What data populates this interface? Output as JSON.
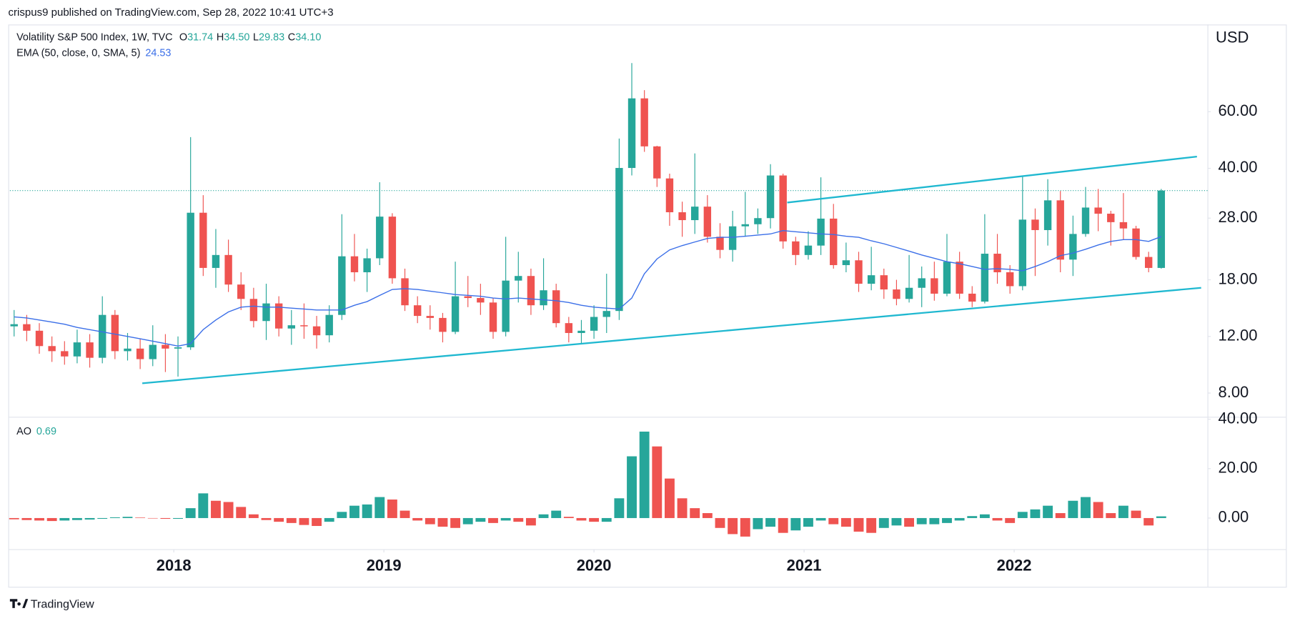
{
  "header": {
    "text": "crispus9 published on TradingView.com, Sep 28, 2022 10:41 UTC+3"
  },
  "footer": {
    "brand": "TradingView"
  },
  "chart_data": {
    "type": "candlestick",
    "title": "Volatility S&P 500 Index, 1W, TVC",
    "ohlc_legend": [
      {
        "key": "O",
        "value": 31.74
      },
      {
        "key": "H",
        "value": 34.5,
        "label": "34.50"
      },
      {
        "key": "L",
        "value": 29.83
      },
      {
        "key": "C",
        "value": 34.1,
        "label": "34.10"
      }
    ],
    "y_axis_label": "USD",
    "log_scale": true,
    "up_color": "#26a69a",
    "down_color": "#ef5350",
    "xlim": [
      2017.22,
      2022.92
    ],
    "xticks": [
      2018,
      2019,
      2020,
      2021,
      2022
    ],
    "ylim": [
      6.75,
      112
    ],
    "yticks": [
      {
        "value": 8,
        "label": "8.00"
      },
      {
        "value": 12,
        "label": "12.00"
      },
      {
        "value": 18,
        "label": "18.00"
      },
      {
        "value": 28,
        "label": "28.00"
      },
      {
        "value": 40,
        "label": "40.00"
      },
      {
        "value": 60,
        "label": "60.00"
      }
    ],
    "x": [
      2017.24,
      2017.3,
      2017.36,
      2017.42,
      2017.48,
      2017.54,
      2017.6,
      2017.66,
      2017.72,
      2017.78,
      2017.84,
      2017.9,
      2017.96,
      2018.02,
      2018.08,
      2018.14,
      2018.2,
      2018.26,
      2018.32,
      2018.38,
      2018.44,
      2018.5,
      2018.56,
      2018.62,
      2018.68,
      2018.74,
      2018.8,
      2018.86,
      2018.92,
      2018.98,
      2019.04,
      2019.1,
      2019.16,
      2019.22,
      2019.28,
      2019.34,
      2019.4,
      2019.46,
      2019.52,
      2019.58,
      2019.64,
      2019.7,
      2019.76,
      2019.82,
      2019.88,
      2019.94,
      2020.0,
      2020.06,
      2020.12,
      2020.18,
      2020.24,
      2020.3,
      2020.36,
      2020.42,
      2020.48,
      2020.54,
      2020.6,
      2020.66,
      2020.72,
      2020.78,
      2020.84,
      2020.9,
      2020.96,
      2021.02,
      2021.08,
      2021.14,
      2021.2,
      2021.26,
      2021.32,
      2021.38,
      2021.44,
      2021.5,
      2021.56,
      2021.62,
      2021.68,
      2021.74,
      2021.8,
      2021.86,
      2021.92,
      2021.98,
      2022.04,
      2022.1,
      2022.16,
      2022.22,
      2022.28,
      2022.34,
      2022.4,
      2022.46,
      2022.52,
      2022.58,
      2022.64,
      2022.7
    ],
    "open": [
      12.9,
      13.1,
      12.5,
      11.2,
      10.8,
      10.4,
      11.5,
      10.3,
      14.0,
      10.8,
      11.0,
      10.2,
      11.3,
      11.0,
      11.1,
      29.1,
      19.6,
      21.5,
      17.4,
      15.7,
      13.4,
      15.2,
      12.7,
      13.0,
      12.9,
      12.1,
      14.0,
      21.3,
      19.0,
      21.0,
      28.3,
      18.2,
      15.0,
      13.9,
      13.7,
      12.4,
      16.0,
      15.8,
      15.3,
      12.4,
      17.9,
      18.5,
      15.0,
      16.7,
      13.2,
      12.3,
      12.5,
      13.8,
      14.4,
      40.1,
      66.0,
      46.8,
      37.2,
      29.2,
      27.6,
      30.4,
      24.5,
      22.3,
      26.4,
      26.8,
      28.0,
      38.0,
      23.7,
      21.5,
      23.0,
      27.9,
      20.0,
      20.7,
      17.5,
      18.6,
      16.8,
      15.7,
      17.0,
      18.2,
      16.3,
      20.5,
      16.3,
      15.4,
      21.7,
      19.0,
      17.2,
      27.7,
      25.7,
      31.8,
      20.8,
      25.0,
      30.2,
      28.9,
      27.2,
      26.0,
      21.2,
      19.6
    ],
    "high": [
      14.5,
      14.0,
      13.2,
      12.0,
      11.6,
      12.6,
      12.2,
      16.0,
      14.5,
      12.3,
      11.8,
      13.0,
      12.2,
      12.0,
      50.0,
      33.0,
      25.9,
      24.0,
      19.0,
      17.0,
      17.5,
      16.0,
      14.5,
      15.2,
      13.9,
      15.0,
      28.8,
      25.0,
      22.5,
      36.2,
      29.0,
      19.5,
      16.0,
      15.0,
      14.2,
      20.5,
      18.5,
      17.5,
      15.8,
      24.5,
      22.0,
      19.5,
      21.0,
      17.5,
      13.8,
      13.5,
      15.0,
      18.8,
      49.5,
      85.0,
      70.0,
      47.0,
      38.5,
      31.5,
      44.5,
      33.0,
      27.0,
      29.5,
      33.8,
      30.0,
      41.2,
      38.5,
      24.5,
      25.5,
      37.5,
      31.0,
      23.5,
      22.0,
      22.8,
      19.5,
      18.0,
      21.5,
      19.8,
      20.5,
      25.0,
      22.0,
      17.2,
      28.8,
      25.0,
      20.0,
      38.0,
      30.0,
      37.0,
      34.0,
      28.5,
      35.0,
      34.5,
      29.5,
      33.5,
      26.5,
      22.0,
      34.5
    ],
    "low": [
      12.0,
      11.6,
      10.6,
      10.0,
      9.8,
      9.9,
      9.6,
      9.9,
      10.2,
      10.1,
      9.5,
      9.7,
      9.3,
      9.0,
      10.9,
      18.5,
      17.0,
      16.5,
      14.5,
      12.8,
      11.7,
      12.0,
      11.3,
      11.8,
      11.0,
      11.5,
      13.5,
      17.8,
      16.5,
      20.0,
      17.5,
      14.4,
      13.2,
      12.6,
      11.5,
      12.2,
      14.8,
      14.0,
      11.8,
      12.0,
      15.3,
      14.0,
      14.5,
      12.8,
      11.5,
      11.4,
      11.8,
      12.3,
      13.5,
      38.0,
      45.0,
      35.0,
      26.5,
      24.5,
      25.0,
      23.5,
      21.0,
      20.5,
      24.5,
      25.0,
      26.0,
      22.5,
      20.0,
      20.8,
      21.5,
      19.5,
      19.0,
      16.5,
      16.7,
      15.7,
      15.0,
      15.3,
      14.8,
      15.5,
      16.0,
      15.7,
      14.8,
      15.2,
      17.5,
      16.3,
      16.7,
      18.5,
      23.0,
      19.0,
      18.5,
      24.5,
      25.5,
      23.0,
      24.0,
      20.8,
      19.0,
      19.5
    ],
    "close": [
      13.1,
      12.5,
      11.2,
      10.8,
      10.4,
      11.5,
      10.3,
      14.0,
      10.8,
      11.0,
      10.2,
      11.3,
      11.0,
      11.1,
      29.1,
      19.6,
      21.5,
      17.4,
      15.7,
      13.4,
      15.2,
      12.7,
      13.0,
      12.9,
      12.1,
      14.0,
      21.3,
      19.0,
      21.0,
      28.3,
      18.2,
      15.0,
      13.9,
      13.7,
      12.4,
      16.0,
      15.8,
      15.3,
      12.4,
      17.9,
      18.5,
      15.0,
      16.7,
      13.2,
      12.3,
      12.5,
      13.8,
      14.4,
      40.1,
      66.0,
      46.8,
      37.2,
      29.2,
      27.6,
      30.4,
      24.5,
      22.3,
      26.4,
      26.8,
      28.0,
      38.0,
      23.7,
      21.5,
      23.0,
      27.9,
      20.0,
      20.7,
      17.5,
      18.6,
      16.8,
      15.7,
      17.0,
      18.2,
      16.3,
      20.5,
      16.3,
      15.4,
      21.7,
      19.0,
      17.2,
      27.7,
      25.7,
      31.8,
      20.8,
      25.0,
      30.2,
      28.9,
      27.2,
      26.0,
      21.2,
      19.6,
      34.1
    ],
    "ema": {
      "name": "EMA (50, close, 0, SMA, 5)",
      "color": "#3b6fe8",
      "values": [
        13.8,
        13.7,
        13.5,
        13.3,
        13.1,
        12.8,
        12.6,
        12.4,
        12.2,
        12.0,
        11.8,
        11.6,
        11.4,
        11.2,
        11.4,
        12.6,
        13.5,
        14.3,
        14.8,
        14.9,
        14.8,
        14.8,
        14.7,
        14.6,
        14.5,
        14.5,
        14.5,
        15.0,
        15.4,
        16.1,
        16.8,
        16.9,
        16.8,
        16.6,
        16.4,
        16.2,
        16.1,
        16.0,
        15.8,
        15.7,
        15.8,
        15.7,
        15.6,
        15.5,
        15.3,
        15.0,
        14.8,
        14.7,
        14.6,
        15.8,
        18.8,
        20.9,
        22.3,
        23.0,
        23.6,
        24.2,
        24.4,
        24.4,
        24.6,
        24.8,
        25.0,
        25.6,
        25.4,
        25.2,
        25.0,
        24.9,
        24.6,
        24.4,
        23.8,
        23.3,
        22.7,
        22.1,
        21.5,
        21.0,
        20.5,
        20.2,
        19.8,
        19.4,
        19.5,
        19.4,
        19.2,
        19.8,
        20.5,
        21.4,
        21.8,
        22.4,
        23.1,
        23.7,
        24.0,
        24.0,
        23.7,
        24.53
      ]
    },
    "price_line_color": "#26a69a",
    "trend_lines": [
      {
        "color": "#1fb8d0",
        "x": [
          2017.85,
          2022.89
        ],
        "y": [
          8.58,
          17.0
        ]
      },
      {
        "color": "#1fb8d0",
        "x": [
          2020.92,
          2022.87
        ],
        "y": [
          31.3,
          43.5
        ]
      }
    ],
    "oscillator": {
      "type": "bar",
      "name": "AO",
      "ylim": [
        -12.6,
        41
      ],
      "yticks": [
        {
          "value": 0,
          "label": "0.00"
        },
        {
          "value": 20,
          "label": "20.00"
        },
        {
          "value": 40,
          "label": "40.00"
        }
      ],
      "values": [
        -0.5,
        -0.8,
        -1.0,
        -1.2,
        -1.0,
        -0.8,
        -0.6,
        -0.3,
        0.3,
        0.5,
        0.2,
        0.0,
        -0.3,
        -0.3,
        4.0,
        10.0,
        7.0,
        6.5,
        4.5,
        1.5,
        -0.8,
        -1.5,
        -2.0,
        -2.8,
        -3.2,
        -1.5,
        2.5,
        5.0,
        5.5,
        8.5,
        7.5,
        3.0,
        -1.0,
        -2.5,
        -3.5,
        -4.0,
        -2.5,
        -1.5,
        -2.0,
        -1.0,
        -1.5,
        -3.0,
        1.5,
        3.0,
        0.5,
        -1.0,
        -1.5,
        -1.5,
        8.0,
        25.0,
        35.0,
        29.0,
        16.0,
        8.0,
        4.0,
        2.0,
        -4.0,
        -6.5,
        -7.5,
        -4.5,
        -3.5,
        -6.0,
        -5.0,
        -3.5,
        -1.0,
        -2.5,
        -3.5,
        -5.5,
        -6.0,
        -4.0,
        -3.0,
        -3.5,
        -2.5,
        -2.5,
        -2.0,
        -1.0,
        0.8,
        1.5,
        -1.0,
        -2.0,
        2.5,
        3.5,
        5.0,
        2.0,
        7.0,
        8.5,
        6.5,
        2.0,
        5.0,
        3.0,
        -3.0,
        0.69
      ]
    }
  }
}
